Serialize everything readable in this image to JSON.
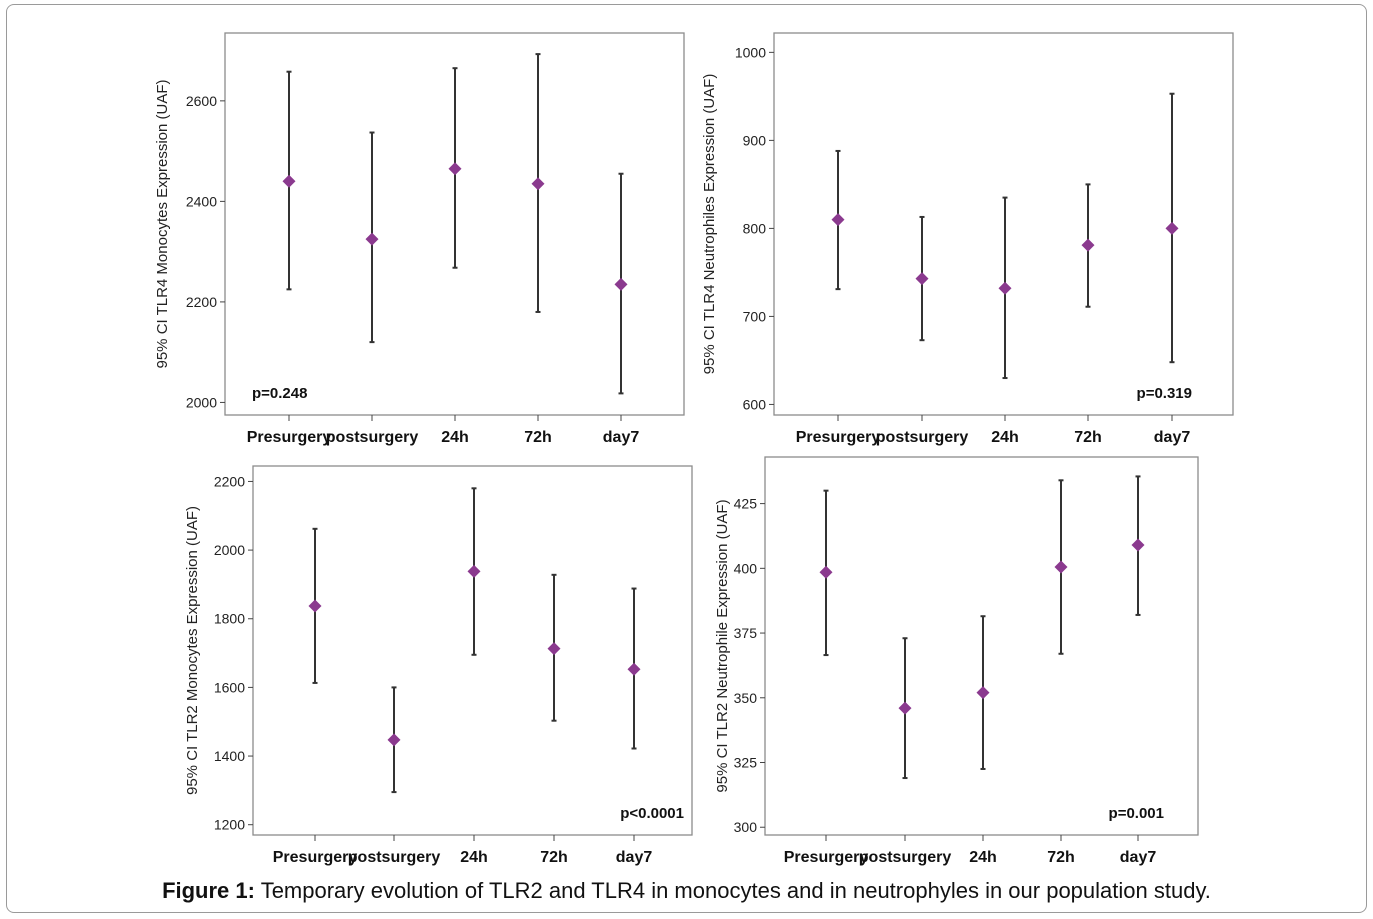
{
  "caption": {
    "label": "Figure 1:",
    "text": "Temporary evolution of TLR2 and TLR4 in monocytes and in neutrophyles in our population study."
  },
  "colors": {
    "marker": "#8b3a8f",
    "errorbar": "#333333",
    "frame": "#8c8c8c"
  },
  "chart_data": [
    {
      "type": "scatter",
      "subtype": "errorbar",
      "title": "",
      "xlabel": "",
      "ylabel": "95% CI TLR4 Monocytes Expression (UAF)",
      "categories": [
        "Presurgery",
        "postsurgery",
        "24h",
        "72h",
        "day7"
      ],
      "values": [
        2440,
        2325,
        2465,
        2435,
        2235
      ],
      "ci_low": [
        2225,
        2120,
        2268,
        2180,
        2018
      ],
      "ci_high": [
        2658,
        2537,
        2665,
        2693,
        2455
      ],
      "ylim": [
        1975,
        2735
      ],
      "yticks": [
        2000,
        2200,
        2400,
        2600
      ],
      "annotation": "p=0.248",
      "annotation_position": "bottom-left",
      "grid": false
    },
    {
      "type": "scatter",
      "subtype": "errorbar",
      "title": "",
      "xlabel": "",
      "ylabel": "95% CI TLR4 Neutrophiles Expression (UAF)",
      "categories": [
        "Presurgery",
        "postsurgery",
        "24h",
        "72h",
        "day7"
      ],
      "values": [
        810,
        743,
        732,
        781,
        800
      ],
      "ci_low": [
        731,
        673,
        630,
        711,
        648
      ],
      "ci_high": [
        888,
        813,
        835,
        850,
        953
      ],
      "ylim": [
        588,
        1022
      ],
      "yticks": [
        600,
        700,
        800,
        900,
        1000
      ],
      "annotation": "p=0.319",
      "annotation_position": "bottom-right",
      "grid": false
    },
    {
      "type": "scatter",
      "subtype": "errorbar",
      "title": "",
      "xlabel": "",
      "ylabel": "95% CI TLR2 Monocytes Expression (UAF)",
      "categories": [
        "Presurgery",
        "postsurgery",
        "24h",
        "72h",
        "day7"
      ],
      "values": [
        1837,
        1447,
        1938,
        1713,
        1653
      ],
      "ci_low": [
        1613,
        1295,
        1695,
        1503,
        1422
      ],
      "ci_high": [
        2062,
        1600,
        2180,
        1928,
        1888
      ],
      "ylim": [
        1170,
        2245
      ],
      "yticks": [
        1200,
        1400,
        1600,
        1800,
        2000,
        2200
      ],
      "annotation": "p<0.0001",
      "annotation_position": "bottom-right",
      "grid": false
    },
    {
      "type": "scatter",
      "subtype": "errorbar",
      "title": "",
      "xlabel": "",
      "ylabel": "95% CI TLR2 Neutrophile Expression (UAF)",
      "categories": [
        "Presurgery",
        "postsurgery",
        "24h",
        "72h",
        "day7"
      ],
      "values": [
        398.5,
        346,
        352,
        400.5,
        409
      ],
      "ci_low": [
        366.5,
        319,
        322.5,
        367,
        382
      ],
      "ci_high": [
        430,
        373,
        381.5,
        434,
        435.5
      ],
      "ylim": [
        297,
        443
      ],
      "yticks": [
        300,
        325,
        350,
        375,
        400,
        425
      ],
      "annotation": "p=0.001",
      "annotation_position": "bottom-right",
      "grid": false
    }
  ]
}
